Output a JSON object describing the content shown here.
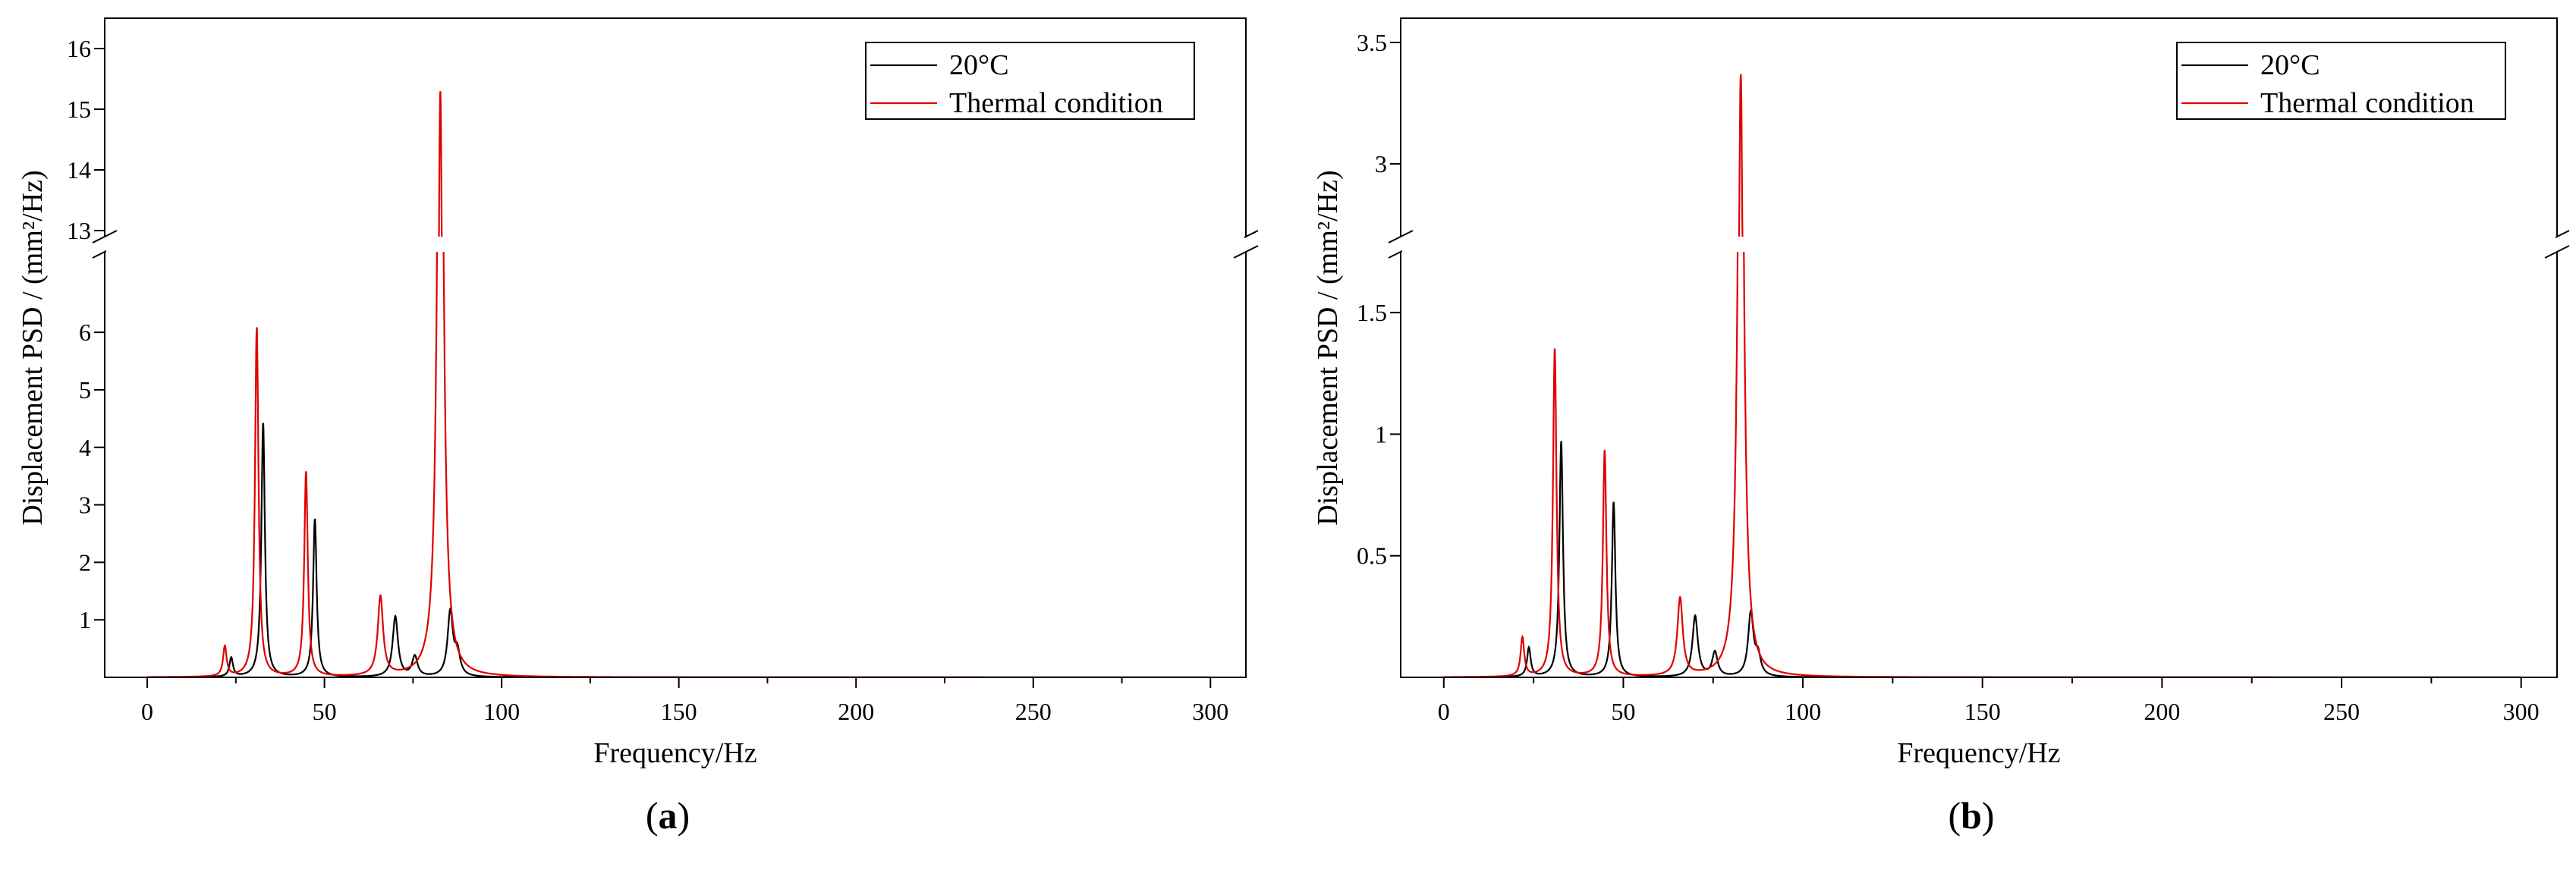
{
  "chart_data": [
    {
      "type": "line",
      "panel_label": "a",
      "xlabel": "Frequency/Hz",
      "ylabel": "Displacement PSD / (mm²/Hz)",
      "xlim": [
        -12,
        310
      ],
      "x_ticks": [
        0,
        50,
        100,
        150,
        200,
        250,
        300
      ],
      "x_tick_labels": [
        "0",
        "50",
        "100",
        "150",
        "200",
        "250",
        "300"
      ],
      "broken_y_axis": true,
      "y_lower_range": [
        0,
        7.4
      ],
      "y_upper_range": [
        12.9,
        16.5
      ],
      "y_ticks_lower": [
        1,
        2,
        3,
        4,
        5,
        6
      ],
      "y_tick_labels_lower": [
        "1",
        "2",
        "3",
        "4",
        "5",
        "6"
      ],
      "y_ticks_upper": [
        13,
        14,
        15,
        16
      ],
      "y_tick_labels_upper": [
        "13",
        "14",
        "15",
        "16"
      ],
      "legend": {
        "position": "top-right",
        "entries": [
          "20°C",
          "Thermal condition"
        ]
      },
      "series": [
        {
          "name": "20°C",
          "color": "#000000",
          "peaks": [
            {
              "x": 23.7,
              "y": 0.33
            },
            {
              "x": 32.7,
              "y": 4.42
            },
            {
              "x": 47.3,
              "y": 2.75
            },
            {
              "x": 70.0,
              "y": 1.05
            },
            {
              "x": 75.5,
              "y": 0.35
            },
            {
              "x": 85.5,
              "y": 1.12
            },
            {
              "x": 87.5,
              "y": 0.4
            }
          ]
        },
        {
          "name": "Thermal condition",
          "color": "#e00000",
          "peaks": [
            {
              "x": 21.9,
              "y": 0.52
            },
            {
              "x": 30.9,
              "y": 6.08
            },
            {
              "x": 44.8,
              "y": 3.56
            },
            {
              "x": 65.8,
              "y": 1.38
            },
            {
              "x": 82.7,
              "y": 15.3
            }
          ]
        }
      ]
    },
    {
      "type": "line",
      "panel_label": "b",
      "xlabel": "Frequency/Hz",
      "ylabel": "Displacement PSD / (mm²/Hz)",
      "xlim": [
        -12,
        310
      ],
      "x_ticks": [
        0,
        50,
        100,
        150,
        200,
        250,
        300
      ],
      "x_tick_labels": [
        "0",
        "50",
        "100",
        "150",
        "200",
        "250",
        "300"
      ],
      "broken_y_axis": true,
      "y_lower_range": [
        0,
        1.75
      ],
      "y_upper_range": [
        2.7,
        3.6
      ],
      "y_ticks_lower": [
        0.5,
        1,
        1.5
      ],
      "y_tick_labels_lower": [
        "0.5",
        "1",
        "1.5"
      ],
      "y_ticks_upper": [
        3,
        3.5
      ],
      "y_tick_labels_upper": [
        "3",
        "3.5"
      ],
      "legend": {
        "position": "top-right",
        "entries": [
          "20°C",
          "Thermal condition"
        ]
      },
      "series": [
        {
          "name": "20°C",
          "color": "#000000",
          "peaks": [
            {
              "x": 23.7,
              "y": 0.12
            },
            {
              "x": 32.7,
              "y": 0.97
            },
            {
              "x": 47.3,
              "y": 0.72
            },
            {
              "x": 70.0,
              "y": 0.25
            },
            {
              "x": 75.5,
              "y": 0.1
            },
            {
              "x": 85.5,
              "y": 0.26
            },
            {
              "x": 87.5,
              "y": 0.08
            }
          ]
        },
        {
          "name": "Thermal condition",
          "color": "#e00000",
          "peaks": [
            {
              "x": 21.9,
              "y": 0.16
            },
            {
              "x": 30.9,
              "y": 1.35
            },
            {
              "x": 44.8,
              "y": 0.93
            },
            {
              "x": 65.8,
              "y": 0.32
            },
            {
              "x": 82.7,
              "y": 3.37
            }
          ]
        }
      ]
    }
  ]
}
